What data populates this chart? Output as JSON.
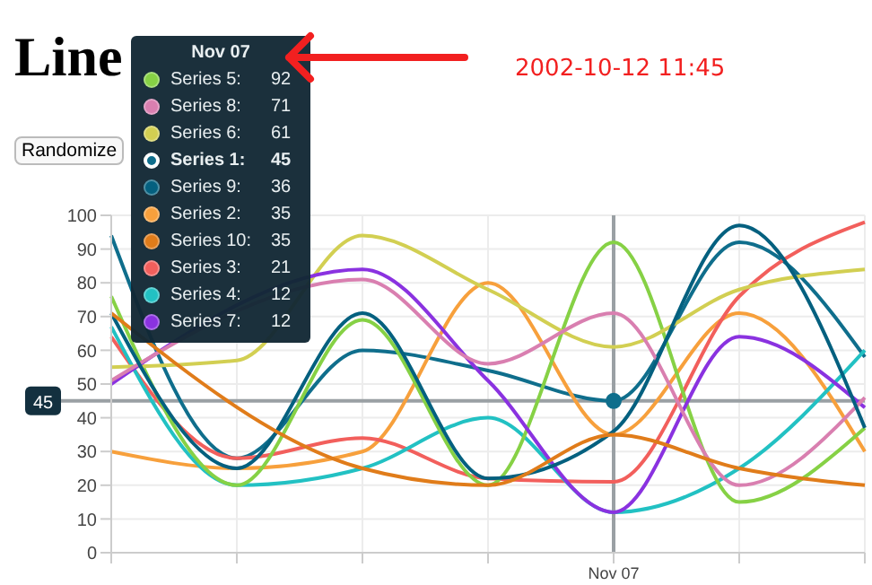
{
  "chart_data": {
    "type": "line",
    "title": "Line",
    "annotations": [
      "Randomize",
      "2002-10-12 11:45",
      "92",
      "71",
      "61",
      "45",
      "36",
      "35",
      "35",
      "21",
      "12",
      "12"
    ],
    "categories": [
      null,
      null,
      null,
      null,
      "Nov 07",
      null,
      null
    ],
    "legend": "top left",
    "series": [
      {
        "name": "Series 1:",
        "color": "#0f6e8c",
        "values": [
          94,
          28,
          60,
          54,
          45,
          92,
          58
        ]
      },
      {
        "name": "Series 2:",
        "color": "#f7a03c",
        "values": [
          30,
          25,
          30,
          80,
          35,
          71,
          30
        ]
      },
      {
        "name": "Series 3:",
        "color": "#f25f5c",
        "values": [
          64,
          28,
          34,
          22,
          21,
          76,
          98
        ]
      },
      {
        "name": "Series 4:",
        "color": "#22c1c3",
        "values": [
          67,
          20,
          25,
          40,
          12,
          25,
          60
        ]
      },
      {
        "name": "Series 5:",
        "color": "#86d145",
        "values": [
          76,
          20,
          69,
          20,
          92,
          15,
          37
        ]
      },
      {
        "name": "Series 6:",
        "color": "#d2cf52",
        "values": [
          55,
          57,
          94,
          78,
          61,
          78,
          84
        ]
      },
      {
        "name": "Series 7:",
        "color": "#8a32e0",
        "values": [
          50,
          null,
          84,
          51,
          12,
          64,
          43
        ]
      },
      {
        "name": "Series 8:",
        "color": "#d97fb0",
        "values": [
          51,
          null,
          81,
          56,
          71,
          20,
          46
        ]
      },
      {
        "name": "Series 9:",
        "color": "#04607f",
        "values": [
          71,
          25,
          71,
          22,
          36,
          97,
          37
        ]
      },
      {
        "name": "Series 10:",
        "color": "#e07c1a",
        "values": [
          71,
          null,
          25,
          20,
          35,
          25,
          20
        ]
      }
    ],
    "ylim": [
      0,
      100
    ],
    "yticks": [
      0,
      10,
      20,
      30,
      40,
      50,
      60,
      70,
      80,
      90,
      100
    ],
    "grid": true,
    "ref_lines": [
      {
        "axis": "x",
        "value": "Nov 07",
        "color": "#9aa0a4"
      },
      {
        "axis": "y",
        "value": 45,
        "label": "45",
        "color": "#9aa0a4"
      }
    ]
  }
}
